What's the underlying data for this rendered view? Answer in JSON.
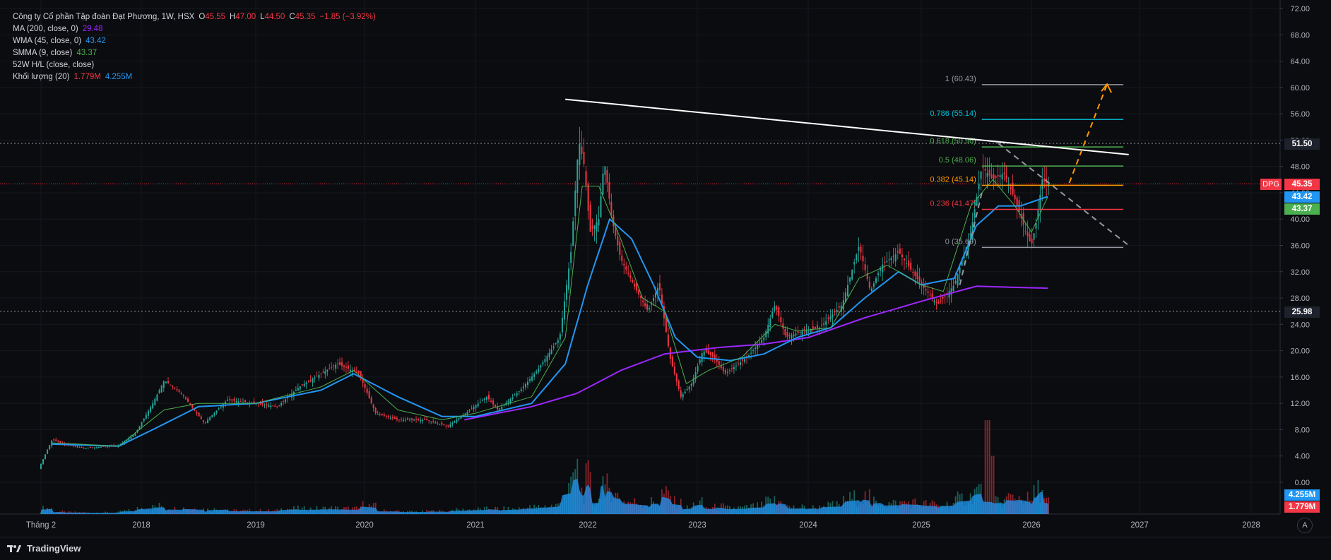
{
  "header": {
    "title": "Công ty Cổ phần Tập đoàn Đạt Phương, 1W, HSX",
    "open_label": "O",
    "open": "45.55",
    "high_label": "H",
    "high": "47.00",
    "low_label": "L",
    "low": "44.50",
    "close_label": "C",
    "close": "45.35",
    "change": "−1.85 (−3.92%)"
  },
  "indicators": [
    {
      "label": "MA (200, close, 0)",
      "value": "29.48",
      "color": "#9c27ff"
    },
    {
      "label": "WMA (45, close, 0)",
      "value": "43.42",
      "color": "#2196f3"
    },
    {
      "label": "SMMA (9, close)",
      "value": "43.37",
      "color": "#4caf50"
    },
    {
      "label": "52W H/L (close, close)",
      "value": "",
      "color": "#d1d4dc"
    },
    {
      "label": "Khối lượng (20)",
      "value": "1.779M",
      "value2": "4.255M",
      "color": "#f23645",
      "color2": "#2196f3"
    }
  ],
  "price_badges": {
    "high52": "51.50",
    "ticker": "DPG",
    "last": "45.35",
    "wma": "43.42",
    "smma": "43.37",
    "low52": "25.98",
    "vol_ma": "4.255M",
    "vol": "1.779M"
  },
  "footer": {
    "brand": "TradingView",
    "auto": "A"
  },
  "chart_data": {
    "type": "candlestick",
    "symbol": "DPG",
    "timeframe": "1W",
    "x_axis": [
      "Tháng 2",
      "2018",
      "2019",
      "2020",
      "2021",
      "2022",
      "2023",
      "2024",
      "2025",
      "2026",
      "2027",
      "2028"
    ],
    "y_ticks": [
      "72.00",
      "68.00",
      "64.00",
      "60.00",
      "56.00",
      "52.00",
      "48.00",
      "44.00",
      "40.00",
      "36.00",
      "32.00",
      "28.00",
      "24.00",
      "20.00",
      "16.00",
      "12.00",
      "8.00",
      "4.00",
      "0.00"
    ],
    "ylim": [
      -3,
      72
    ],
    "price_path": [
      [
        2017.1,
        2.8
      ],
      [
        2017.2,
        6.5
      ],
      [
        2017.3,
        5.8
      ],
      [
        2017.5,
        5.2
      ],
      [
        2017.8,
        5.6
      ],
      [
        2017.95,
        7.5
      ],
      [
        2018.1,
        12
      ],
      [
        2018.2,
        15.5
      ],
      [
        2018.35,
        13.5
      ],
      [
        2018.55,
        9
      ],
      [
        2018.75,
        12.5
      ],
      [
        2019.0,
        12
      ],
      [
        2019.2,
        11.5
      ],
      [
        2019.4,
        14.5
      ],
      [
        2019.6,
        16.5
      ],
      [
        2019.75,
        18
      ],
      [
        2019.95,
        16.5
      ],
      [
        2020.1,
        10.5
      ],
      [
        2020.3,
        9.5
      ],
      [
        2020.55,
        9.5
      ],
      [
        2020.75,
        8.5
      ],
      [
        2020.95,
        11
      ],
      [
        2021.1,
        13
      ],
      [
        2021.2,
        11
      ],
      [
        2021.4,
        14
      ],
      [
        2021.55,
        17
      ],
      [
        2021.75,
        22
      ],
      [
        2021.85,
        35
      ],
      [
        2021.92,
        52
      ],
      [
        2021.97,
        48
      ],
      [
        2022.02,
        38
      ],
      [
        2022.1,
        40
      ],
      [
        2022.15,
        49
      ],
      [
        2022.22,
        40
      ],
      [
        2022.3,
        34
      ],
      [
        2022.45,
        29
      ],
      [
        2022.55,
        26
      ],
      [
        2022.65,
        30
      ],
      [
        2022.75,
        19
      ],
      [
        2022.85,
        13
      ],
      [
        2022.95,
        15
      ],
      [
        2023.05,
        20
      ],
      [
        2023.15,
        19
      ],
      [
        2023.25,
        16.5
      ],
      [
        2023.45,
        19
      ],
      [
        2023.6,
        22
      ],
      [
        2023.7,
        27
      ],
      [
        2023.8,
        22
      ],
      [
        2023.95,
        23
      ],
      [
        2024.1,
        23.5
      ],
      [
        2024.3,
        27
      ],
      [
        2024.45,
        36
      ],
      [
        2024.55,
        29
      ],
      [
        2024.65,
        33
      ],
      [
        2024.8,
        35
      ],
      [
        2025.0,
        30
      ],
      [
        2025.15,
        27
      ],
      [
        2025.3,
        30
      ],
      [
        2025.45,
        38
      ],
      [
        2025.55,
        48
      ],
      [
        2025.65,
        46
      ],
      [
        2025.75,
        47
      ],
      [
        2025.85,
        43
      ],
      [
        2025.95,
        38
      ],
      [
        2026.0,
        36
      ],
      [
        2026.05,
        40
      ],
      [
        2026.1,
        46
      ],
      [
        2026.15,
        45.35
      ]
    ],
    "series": [
      {
        "name": "MA (200, close, 0)",
        "color": "#9c27ff",
        "x": [
          2020.9,
          2021.5,
          2021.9,
          2022.3,
          2022.7,
          2023.2,
          2023.6,
          2024.0,
          2024.5,
          2025.0,
          2025.5,
          2025.9,
          2026.15
        ],
        "y": [
          9.5,
          11.5,
          13.5,
          17,
          19.5,
          20.5,
          21,
          22,
          25,
          27.5,
          29.8,
          29.6,
          29.5
        ]
      },
      {
        "name": "WMA (45, close, 0)",
        "color": "#2196f3",
        "x": [
          2017.2,
          2017.8,
          2018.1,
          2018.5,
          2019.0,
          2019.6,
          2019.9,
          2020.3,
          2020.7,
          2021.0,
          2021.5,
          2021.8,
          2022.0,
          2022.2,
          2022.4,
          2022.6,
          2022.8,
          2023.0,
          2023.3,
          2023.6,
          2023.9,
          2024.2,
          2024.5,
          2024.8,
          2025.0,
          2025.3,
          2025.5,
          2025.7,
          2025.9,
          2026.15
        ],
        "y": [
          5.8,
          5.5,
          8,
          11.5,
          12,
          14,
          16.5,
          13,
          10,
          10,
          12,
          18,
          30,
          40,
          37,
          30,
          22,
          19,
          18.5,
          19.5,
          22,
          23.5,
          28,
          32,
          30,
          31,
          39,
          42,
          42,
          43.42
        ]
      },
      {
        "name": "SMMA (9, close)",
        "color": "#4caf50",
        "x": [
          2017.2,
          2017.8,
          2018.2,
          2018.5,
          2019.0,
          2019.6,
          2019.9,
          2020.3,
          2020.7,
          2021.0,
          2021.5,
          2021.8,
          2021.95,
          2022.1,
          2022.3,
          2022.5,
          2022.7,
          2022.9,
          2023.1,
          2023.4,
          2023.7,
          2023.9,
          2024.2,
          2024.45,
          2024.7,
          2025.0,
          2025.2,
          2025.45,
          2025.65,
          2025.85,
          2026.0,
          2026.15
        ],
        "y": [
          6,
          5.5,
          11,
          12,
          12,
          14.5,
          17,
          11,
          9.5,
          10.5,
          13,
          22,
          45,
          45,
          37,
          28,
          26,
          15,
          17,
          19,
          24,
          23,
          23.5,
          31,
          33,
          30,
          29,
          42,
          46,
          42,
          38,
          43.37
        ]
      }
    ],
    "volume": {
      "ma_label": "4.255M",
      "last_label": "1.779M",
      "spike_year": 2025.6,
      "spike_value": 14
    },
    "fibonacci": [
      {
        "level": "1 (60.43)",
        "price": 60.43
      },
      {
        "level": "0.786 (55.14)",
        "price": 55.14
      },
      {
        "level": "0.618 (50.96)",
        "price": 50.96
      },
      {
        "level": "0.5 (48.06)",
        "price": 48.06
      },
      {
        "level": "0.382 (45.14)",
        "price": 45.14
      },
      {
        "level": "0.236 (41.47)",
        "price": 41.47
      },
      {
        "level": "0 (35.69)",
        "price": 35.69
      }
    ],
    "annotations": {
      "trendline": [
        [
          2021.8,
          58.2
        ],
        [
          2026.9,
          49.8
        ]
      ],
      "dashed_down": [
        [
          2025.7,
          51.5
        ],
        [
          2026.9,
          36
        ]
      ],
      "dashed_up": [
        [
          2025.35,
          30
        ],
        [
          2025.55,
          44
        ]
      ],
      "projection": [
        [
          2026.35,
          45.5
        ],
        [
          2026.7,
          60.5
        ]
      ],
      "high52_price": 51.5,
      "low52_price": 25.98,
      "last_price": 45.35
    }
  }
}
